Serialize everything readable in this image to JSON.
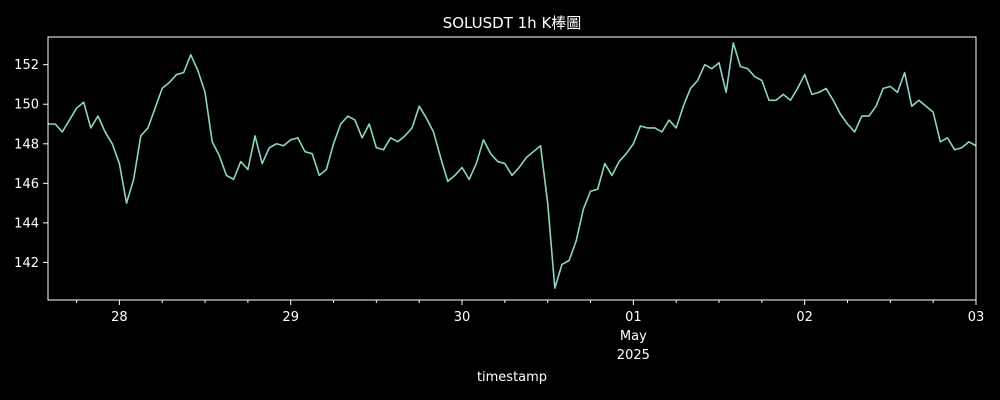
{
  "chart_data": {
    "type": "line",
    "title": "SOLUSDT 1h K棒圖",
    "xlabel": "timestamp",
    "ylabel": "",
    "colors": {
      "background": "#000000",
      "axes": "#ffffff",
      "line": "#8dd3c7",
      "text": "#ffffff"
    },
    "grid": false,
    "xlim": [
      "2025-04-27 14:00",
      "2025-05-03 00:00"
    ],
    "ylim": [
      140.1,
      153.4
    ],
    "x_ticks": [
      {
        "x": "2025-04-28 00:00",
        "label": "28"
      },
      {
        "x": "2025-04-29 00:00",
        "label": "29"
      },
      {
        "x": "2025-04-30 00:00",
        "label": "30"
      },
      {
        "x": "2025-05-01 00:00",
        "label": "01",
        "label2": "May",
        "label3": "2025"
      },
      {
        "x": "2025-05-02 00:00",
        "label": "02"
      },
      {
        "x": "2025-05-03 00:00",
        "label": "03"
      }
    ],
    "y_ticks": [
      142,
      144,
      146,
      148,
      150,
      152
    ],
    "series": [
      {
        "x": [
          "2025-04-27 14:00",
          "2025-04-27 15:00",
          "2025-04-27 16:00",
          "2025-04-27 17:00",
          "2025-04-27 18:00",
          "2025-04-27 19:00",
          "2025-04-27 20:00",
          "2025-04-27 21:00",
          "2025-04-27 22:00",
          "2025-04-27 23:00",
          "2025-04-28 00:00",
          "2025-04-28 01:00",
          "2025-04-28 02:00",
          "2025-04-28 03:00",
          "2025-04-28 04:00",
          "2025-04-28 05:00",
          "2025-04-28 06:00",
          "2025-04-28 07:00",
          "2025-04-28 08:00",
          "2025-04-28 09:00",
          "2025-04-28 10:00",
          "2025-04-28 11:00",
          "2025-04-28 12:00",
          "2025-04-28 13:00",
          "2025-04-28 14:00",
          "2025-04-28 15:00",
          "2025-04-28 16:00",
          "2025-04-28 17:00",
          "2025-04-28 18:00",
          "2025-04-28 19:00",
          "2025-04-28 20:00",
          "2025-04-28 21:00",
          "2025-04-28 22:00",
          "2025-04-28 23:00",
          "2025-04-29 00:00",
          "2025-04-29 01:00",
          "2025-04-29 02:00",
          "2025-04-29 03:00",
          "2025-04-29 04:00",
          "2025-04-29 05:00",
          "2025-04-29 06:00",
          "2025-04-29 07:00",
          "2025-04-29 08:00",
          "2025-04-29 09:00",
          "2025-04-29 10:00",
          "2025-04-29 11:00",
          "2025-04-29 12:00",
          "2025-04-29 13:00",
          "2025-04-29 14:00",
          "2025-04-29 15:00",
          "2025-04-29 16:00",
          "2025-04-29 17:00",
          "2025-04-29 18:00",
          "2025-04-29 19:00",
          "2025-04-29 20:00",
          "2025-04-29 21:00",
          "2025-04-29 22:00",
          "2025-04-29 23:00",
          "2025-04-30 00:00",
          "2025-04-30 01:00",
          "2025-04-30 02:00",
          "2025-04-30 03:00",
          "2025-04-30 04:00",
          "2025-04-30 05:00",
          "2025-04-30 06:00",
          "2025-04-30 07:00",
          "2025-04-30 08:00",
          "2025-04-30 09:00",
          "2025-04-30 10:00",
          "2025-04-30 11:00",
          "2025-04-30 12:00",
          "2025-04-30 13:00",
          "2025-04-30 14:00",
          "2025-04-30 15:00",
          "2025-04-30 16:00",
          "2025-04-30 17:00",
          "2025-04-30 18:00",
          "2025-04-30 19:00",
          "2025-04-30 20:00",
          "2025-04-30 21:00",
          "2025-04-30 22:00",
          "2025-04-30 23:00",
          "2025-05-01 00:00",
          "2025-05-01 01:00",
          "2025-05-01 02:00",
          "2025-05-01 03:00",
          "2025-05-01 04:00",
          "2025-05-01 05:00",
          "2025-05-01 06:00",
          "2025-05-01 07:00",
          "2025-05-01 08:00",
          "2025-05-01 09:00",
          "2025-05-01 10:00",
          "2025-05-01 11:00",
          "2025-05-01 12:00",
          "2025-05-01 13:00",
          "2025-05-01 14:00",
          "2025-05-01 15:00",
          "2025-05-01 16:00",
          "2025-05-01 17:00",
          "2025-05-01 18:00",
          "2025-05-01 19:00",
          "2025-05-01 20:00",
          "2025-05-01 21:00",
          "2025-05-01 22:00",
          "2025-05-01 23:00",
          "2025-05-02 00:00",
          "2025-05-02 01:00",
          "2025-05-02 02:00",
          "2025-05-02 03:00",
          "2025-05-02 04:00",
          "2025-05-02 05:00",
          "2025-05-02 06:00",
          "2025-05-02 07:00",
          "2025-05-02 08:00",
          "2025-05-02 09:00",
          "2025-05-02 10:00",
          "2025-05-02 11:00",
          "2025-05-02 12:00",
          "2025-05-02 13:00",
          "2025-05-02 14:00",
          "2025-05-02 15:00",
          "2025-05-02 16:00",
          "2025-05-02 17:00",
          "2025-05-02 18:00",
          "2025-05-02 19:00",
          "2025-05-02 20:00",
          "2025-05-02 21:00",
          "2025-05-02 22:00",
          "2025-05-02 23:00",
          "2025-05-03 00:00"
        ],
        "values": [
          149.0,
          149.0,
          148.6,
          149.2,
          149.8,
          150.1,
          148.8,
          149.4,
          148.6,
          148.0,
          147.0,
          145.0,
          146.2,
          148.4,
          148.8,
          149.8,
          150.8,
          151.1,
          151.5,
          151.6,
          152.5,
          151.7,
          150.6,
          148.1,
          147.4,
          146.4,
          146.2,
          147.1,
          146.7,
          148.4,
          147.0,
          147.8,
          148.0,
          147.9,
          148.2,
          148.3,
          147.6,
          147.5,
          146.4,
          146.7,
          148.0,
          149.0,
          149.4,
          149.2,
          148.3,
          149.0,
          147.8,
          147.7,
          148.3,
          148.1,
          148.4,
          148.8,
          149.9,
          149.3,
          148.6,
          147.3,
          146.1,
          146.4,
          146.8,
          146.2,
          147.0,
          148.2,
          147.5,
          147.1,
          147.0,
          146.4,
          146.8,
          147.3,
          147.6,
          147.9,
          145.0,
          140.7,
          141.9,
          142.1,
          143.1,
          144.7,
          145.6,
          145.7,
          147.0,
          146.4,
          147.1,
          147.5,
          148.0,
          148.9,
          148.8,
          148.8,
          148.6,
          149.2,
          148.8,
          149.9,
          150.8,
          151.2,
          152.0,
          151.8,
          152.1,
          150.6,
          153.1,
          151.9,
          151.8,
          151.4,
          151.2,
          150.2,
          150.2,
          150.5,
          150.2,
          150.8,
          151.5,
          150.5,
          150.6,
          150.8,
          150.2,
          149.5,
          149.0,
          148.6,
          149.4,
          149.4,
          149.9,
          150.8,
          150.9,
          150.6,
          151.6,
          149.9,
          150.2,
          149.9,
          149.6,
          148.1,
          148.3,
          147.7,
          147.8,
          148.1,
          147.9
        ]
      }
    ]
  }
}
